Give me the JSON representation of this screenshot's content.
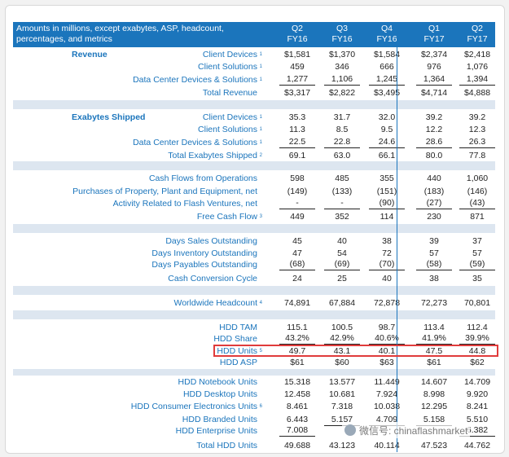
{
  "header": {
    "title_line1": "Amounts in millions, except exabytes, ASP, headcount,",
    "title_line2": "percentages, and metrics",
    "columns": [
      {
        "q": "Q2",
        "fy": "FY16"
      },
      {
        "q": "Q3",
        "fy": "FY16"
      },
      {
        "q": "Q4",
        "fy": "FY16"
      },
      {
        "q": "Q1",
        "fy": "FY17"
      },
      {
        "q": "Q2",
        "fy": "FY17"
      }
    ]
  },
  "sections": {
    "revenue": "Revenue",
    "exabytes": "Exabytes Shipped"
  },
  "rows": [
    {
      "label": "Client Devices",
      "sup": "1",
      "values": [
        "$1,581",
        "$1,370",
        "$1,584",
        "$2,374",
        "$2,418"
      ]
    },
    {
      "label": "Client Solutions",
      "sup": "1",
      "values": [
        "459",
        "346",
        "666",
        "976",
        "1,076"
      ]
    },
    {
      "label": "Data Center Devices & Solutions",
      "sup": "1",
      "values": [
        "1,277",
        "1,106",
        "1,245",
        "1,364",
        "1,394"
      ]
    },
    {
      "label": "Total Revenue",
      "sup": "",
      "values": [
        "$3,317",
        "$2,822",
        "$3,495",
        "$4,714",
        "$4,888"
      ]
    },
    {
      "label": "Client Devices",
      "sup": "1",
      "values": [
        "35.3",
        "31.7",
        "32.0",
        "39.2",
        "39.2"
      ]
    },
    {
      "label": "Client Solutions",
      "sup": "1",
      "values": [
        "11.3",
        "8.5",
        "9.5",
        "12.2",
        "12.3"
      ]
    },
    {
      "label": "Data Center Devices & Solutions",
      "sup": "1",
      "values": [
        "22.5",
        "22.8",
        "24.6",
        "28.6",
        "26.3"
      ]
    },
    {
      "label": "Total Exabytes Shipped",
      "sup": "2",
      "values": [
        "69.1",
        "63.0",
        "66.1",
        "80.0",
        "77.8"
      ]
    },
    {
      "label": "Cash Flows from Operations",
      "sup": "",
      "values": [
        "598",
        "485",
        "355",
        "440",
        "1,060"
      ]
    },
    {
      "label": "Purchases of Property, Plant and Equipment, net",
      "sup": "",
      "values": [
        "(149)",
        "(133)",
        "(151)",
        "(183)",
        "(146)"
      ]
    },
    {
      "label": "Activity Related to Flash Ventures, net",
      "sup": "",
      "values": [
        "-",
        "-",
        "(90)",
        "(27)",
        "(43)"
      ]
    },
    {
      "label": "Free Cash Flow",
      "sup": "3",
      "values": [
        "449",
        "352",
        "114",
        "230",
        "871"
      ]
    },
    {
      "label": "Days Sales Outstanding",
      "sup": "",
      "values": [
        "45",
        "40",
        "38",
        "39",
        "37"
      ]
    },
    {
      "label": "Days Inventory Outstanding",
      "sup": "",
      "values": [
        "47",
        "54",
        "72",
        "57",
        "57"
      ]
    },
    {
      "label": "Days Payables Outstanding",
      "sup": "",
      "values": [
        "(68)",
        "(69)",
        "(70)",
        "(58)",
        "(59)"
      ]
    },
    {
      "label": "Cash Conversion Cycle",
      "sup": "",
      "values": [
        "24",
        "25",
        "40",
        "38",
        "35"
      ]
    },
    {
      "label": "Worldwide Headcount",
      "sup": "4",
      "values": [
        "74,891",
        "67,884",
        "72,878",
        "72,273",
        "70,801"
      ]
    },
    {
      "label": "HDD TAM",
      "sup": "",
      "values": [
        "115.1",
        "100.5",
        "98.7",
        "113.4",
        "112.4"
      ]
    },
    {
      "label": "HDD Share",
      "sup": "",
      "values": [
        "43.2%",
        "42.9%",
        "40.6%",
        "41.9%",
        "39.9%"
      ]
    },
    {
      "label": "HDD Units",
      "sup": "5",
      "values": [
        "49.7",
        "43.1",
        "40.1",
        "47.5",
        "44.8"
      ]
    },
    {
      "label": "HDD ASP",
      "sup": "",
      "values": [
        "$61",
        "$60",
        "$63",
        "$61",
        "$62"
      ]
    },
    {
      "label": "HDD Notebook Units",
      "sup": "",
      "values": [
        "15.318",
        "13.577",
        "11.449",
        "14.607",
        "14.709"
      ]
    },
    {
      "label": "HDD Desktop Units",
      "sup": "",
      "values": [
        "12.458",
        "10.681",
        "7.924",
        "8.998",
        "9.920"
      ]
    },
    {
      "label": "HDD Consumer Electronics Units",
      "sup": "6",
      "values": [
        "8.461",
        "7.318",
        "10.038",
        "12.295",
        "8.241"
      ]
    },
    {
      "label": "HDD Branded Units",
      "sup": "",
      "values": [
        "6.443",
        "5.157",
        "4.709",
        "5.158",
        "5.510"
      ]
    },
    {
      "label": "HDD Enterprise Units",
      "sup": "",
      "values": [
        "7.008",
        "",
        "",
        "",
        "6.382"
      ]
    },
    {
      "label": "Total HDD Units",
      "sup": "",
      "values": [
        "49.688",
        "43.123",
        "40.114",
        "47.523",
        "44.762"
      ]
    }
  ],
  "watermark": "微信号: chinaflashmarket",
  "colors": {
    "header_bg": "#1b75bc",
    "label_text": "#1b75bc",
    "band": "#dde6f0",
    "highlight": "#e03b3b"
  }
}
